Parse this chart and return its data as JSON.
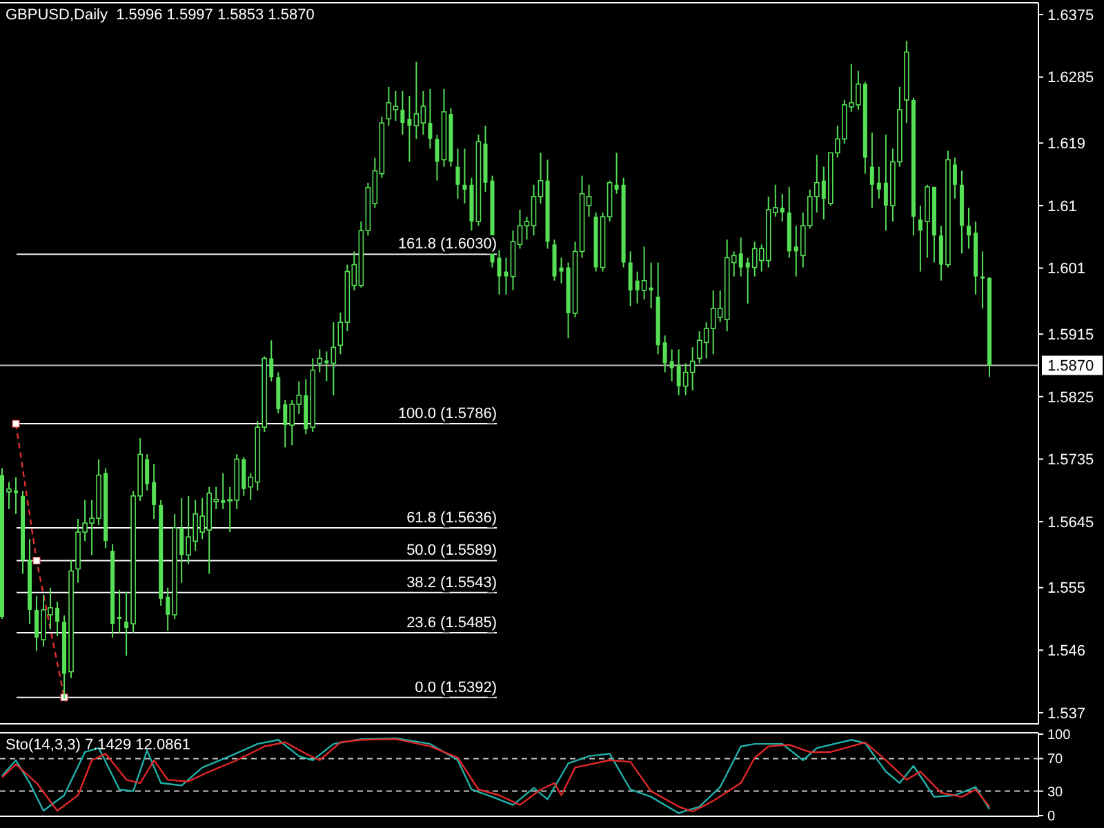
{
  "chart_data": [
    {
      "type": "candlestick",
      "title": "GBPUSD,Daily  1.5996 1.5997 1.5853 1.5870",
      "color": "#55e055",
      "categories": [
        null,
        null,
        null,
        null,
        null,
        null,
        null,
        null,
        null,
        null,
        null,
        null,
        null,
        null,
        null,
        null,
        null,
        null,
        null,
        null,
        null,
        null,
        null,
        null,
        null,
        null,
        null,
        null,
        null,
        null,
        null,
        null,
        null,
        null,
        null,
        null,
        null,
        null,
        null,
        null,
        null,
        null,
        null,
        null,
        null,
        null,
        null,
        null,
        null,
        null,
        null,
        null,
        null,
        null,
        null,
        null,
        null,
        null,
        null,
        null,
        null,
        null,
        null,
        null,
        null,
        null,
        null,
        null,
        null,
        null,
        null,
        null,
        null,
        null,
        null,
        null,
        null,
        null,
        null,
        null,
        null,
        null,
        null,
        null,
        null,
        null,
        null,
        null,
        null,
        null,
        null,
        null,
        null,
        null,
        null,
        null,
        null,
        null,
        null,
        null,
        null,
        null,
        null,
        null,
        null,
        null,
        null,
        null,
        null,
        null,
        null,
        null,
        null,
        null,
        null,
        null,
        null,
        null,
        null,
        null,
        null,
        null,
        null,
        null,
        null,
        null,
        null,
        null,
        null,
        null,
        null,
        null,
        null,
        null,
        null,
        null,
        null,
        null,
        null,
        null,
        null,
        null,
        null,
        null
      ],
      "ohlc": [
        [
          1.5712,
          1.5722,
          1.5505,
          1.5508
        ],
        [
          1.5688,
          1.5702,
          1.5663,
          1.5692
        ],
        [
          1.569,
          1.5709,
          1.5656,
          1.5686
        ],
        [
          1.5682,
          1.5689,
          1.557,
          1.559
        ],
        [
          1.559,
          1.562,
          1.5498,
          1.5518
        ],
        [
          1.5518,
          1.5538,
          1.5459,
          1.5478
        ],
        [
          1.5475,
          1.554,
          1.5465,
          1.5518
        ],
        [
          1.5511,
          1.555,
          1.549,
          1.5521
        ],
        [
          1.5521,
          1.553,
          1.548,
          1.5501
        ],
        [
          1.5501,
          1.551,
          1.539,
          1.5426
        ],
        [
          1.5429,
          1.559,
          1.542,
          1.5574
        ],
        [
          1.5577,
          1.5649,
          1.5557,
          1.563
        ],
        [
          1.563,
          1.5676,
          1.5617,
          1.5643
        ],
        [
          1.5643,
          1.5676,
          1.5597,
          1.565
        ],
        [
          1.565,
          1.5735,
          1.564,
          1.5712
        ],
        [
          1.5715,
          1.5722,
          1.5607,
          1.5617
        ],
        [
          1.5603,
          1.5613,
          1.5478,
          1.5498
        ],
        [
          1.5508,
          1.5547,
          1.5485,
          1.5505
        ],
        [
          1.5501,
          1.5544,
          1.5452,
          1.5492
        ],
        [
          1.5498,
          1.5689,
          1.5485,
          1.5682
        ],
        [
          1.5682,
          1.5765,
          1.5675,
          1.5742
        ],
        [
          1.5735,
          1.5742,
          1.569,
          1.5699
        ],
        [
          1.5702,
          1.5728,
          1.5649,
          1.5669
        ],
        [
          1.5669,
          1.5676,
          1.5524,
          1.5534
        ],
        [
          1.5537,
          1.555,
          1.5488,
          1.5511
        ],
        [
          1.5511,
          1.5656,
          1.5505,
          1.5636
        ],
        [
          1.5636,
          1.5679,
          1.5557,
          1.5597
        ],
        [
          1.5597,
          1.5682,
          1.5584,
          1.5623
        ],
        [
          1.5617,
          1.5676,
          1.5603,
          1.5656
        ],
        [
          1.563,
          1.5679,
          1.562,
          1.5653
        ],
        [
          1.5633,
          1.5695,
          1.557,
          1.5686
        ],
        [
          1.5674,
          1.5695,
          1.5663,
          1.5677
        ],
        [
          1.5676,
          1.5715,
          1.5663,
          1.5672
        ],
        [
          1.5676,
          1.5695,
          1.563,
          1.5677
        ],
        [
          1.5676,
          1.5742,
          1.5663,
          1.5735
        ],
        [
          1.5735,
          1.5738,
          1.5682,
          1.5692
        ],
        [
          1.5695,
          1.5715,
          1.5676,
          1.5709
        ],
        [
          1.5702,
          1.579,
          1.569,
          1.5781
        ],
        [
          1.5781,
          1.5883,
          1.5774,
          1.588
        ],
        [
          1.588,
          1.5906,
          1.5847,
          1.5853
        ],
        [
          1.5853,
          1.586,
          1.5801,
          1.5807
        ],
        [
          1.5814,
          1.582,
          1.5752,
          1.5784
        ],
        [
          1.5784,
          1.582,
          1.5755,
          1.5814
        ],
        [
          1.5814,
          1.5847,
          1.58,
          1.5827
        ],
        [
          1.5827,
          1.585,
          1.5771,
          1.5778
        ],
        [
          1.5781,
          1.588,
          1.5774,
          1.5863
        ],
        [
          1.5873,
          1.5893,
          1.586,
          1.588
        ],
        [
          1.5877,
          1.589,
          1.5847,
          1.5873
        ],
        [
          1.5873,
          1.5932,
          1.5827,
          1.5896
        ],
        [
          1.5899,
          1.5946,
          1.5886,
          1.5932
        ],
        [
          1.5932,
          1.6015,
          1.5919,
          1.6005
        ],
        [
          1.5985,
          1.6034,
          1.5978,
          1.6015
        ],
        [
          1.5985,
          1.6077,
          1.5982,
          1.6064
        ],
        [
          1.6064,
          1.6133,
          1.6057,
          1.6126
        ],
        [
          1.6103,
          1.6169,
          1.6097,
          1.615
        ],
        [
          1.6146,
          1.6228,
          1.614,
          1.6219
        ],
        [
          1.6225,
          1.6271,
          1.6215,
          1.6248
        ],
        [
          1.6238,
          1.6265,
          1.6222,
          1.6243
        ],
        [
          1.6238,
          1.6265,
          1.6202,
          1.6219
        ],
        [
          1.6225,
          1.6258,
          1.6163,
          1.6215
        ],
        [
          1.6215,
          1.6307,
          1.6196,
          1.6232
        ],
        [
          1.6219,
          1.6265,
          1.6202,
          1.6243
        ],
        [
          1.6219,
          1.6268,
          1.6182,
          1.6196
        ],
        [
          1.6196,
          1.6202,
          1.6136,
          1.6163
        ],
        [
          1.6166,
          1.6268,
          1.6156,
          1.6235
        ],
        [
          1.6232,
          1.624,
          1.6156,
          1.6163
        ],
        [
          1.6156,
          1.6182,
          1.611,
          1.613
        ],
        [
          1.613,
          1.6182,
          1.6103,
          1.6123
        ],
        [
          1.613,
          1.614,
          1.6064,
          1.6077
        ],
        [
          1.6077,
          1.6202,
          1.6071,
          1.6192
        ],
        [
          1.6189,
          1.6215,
          1.612,
          1.6133
        ],
        [
          1.6136,
          1.6143,
          1.6011,
          1.6018
        ],
        [
          1.6025,
          1.6036,
          1.5972,
          1.5998
        ],
        [
          1.6005,
          1.6025,
          1.5972,
          1.5998
        ],
        [
          1.5998,
          1.6064,
          1.5978,
          1.6048
        ],
        [
          1.6044,
          1.6094,
          1.6038,
          1.6071
        ],
        [
          1.6071,
          1.6084,
          1.6051,
          1.6077
        ],
        [
          1.6071,
          1.613,
          1.6057,
          1.6113
        ],
        [
          1.6113,
          1.6176,
          1.6103,
          1.6136
        ],
        [
          1.6136,
          1.6166,
          1.6038,
          1.6048
        ],
        [
          1.6044,
          1.6051,
          1.5992,
          1.5998
        ],
        [
          1.6011,
          1.6025,
          1.5988,
          1.6005
        ],
        [
          1.6011,
          1.6018,
          1.5909,
          1.5945
        ],
        [
          1.5945,
          1.6048,
          1.5939,
          1.6034
        ],
        [
          1.6034,
          1.6143,
          1.6025,
          1.6117
        ],
        [
          1.61,
          1.613,
          1.6084,
          1.6113
        ],
        [
          1.6084,
          1.609,
          1.6005,
          1.6011
        ],
        [
          1.6011,
          1.609,
          1.6005,
          1.6084
        ],
        [
          1.6084,
          1.6136,
          1.6077,
          1.6133
        ],
        [
          1.613,
          1.6176,
          1.6117,
          1.6123
        ],
        [
          1.613,
          1.614,
          1.6011,
          1.6018
        ],
        [
          1.6018,
          1.6034,
          1.5955,
          1.5978
        ],
        [
          1.5992,
          1.6005,
          1.5959,
          1.5978
        ],
        [
          1.5978,
          1.6041,
          1.5965,
          1.5992
        ],
        [
          1.5982,
          1.6018,
          1.5952,
          1.5978
        ],
        [
          1.5969,
          1.6018,
          1.5886,
          1.5899
        ],
        [
          1.5903,
          1.5913,
          1.586,
          1.5873
        ],
        [
          1.5876,
          1.5893,
          1.5847,
          1.5866
        ],
        [
          1.587,
          1.5893,
          1.5827,
          1.584
        ],
        [
          1.584,
          1.5873,
          1.5827,
          1.586
        ],
        [
          1.586,
          1.5896,
          1.5834,
          1.5876
        ],
        [
          1.588,
          1.5919,
          1.5873,
          1.5906
        ],
        [
          1.5903,
          1.5932,
          1.588,
          1.5923
        ],
        [
          1.5923,
          1.5978,
          1.5886,
          1.5952
        ],
        [
          1.5939,
          1.5978,
          1.5932,
          1.5952
        ],
        [
          1.5936,
          1.6051,
          1.5919,
          1.6025
        ],
        [
          1.6018,
          1.6034,
          1.5998,
          1.6028
        ],
        [
          1.6031,
          1.6054,
          1.5998,
          1.6011
        ],
        [
          1.6018,
          1.6025,
          1.5959,
          1.6011
        ],
        [
          1.6011,
          1.6048,
          1.5998,
          1.6038
        ],
        [
          1.6021,
          1.6044,
          1.6005,
          1.6038
        ],
        [
          1.6021,
          1.6113,
          1.6011,
          1.6094
        ],
        [
          1.609,
          1.613,
          1.6084,
          1.6097
        ],
        [
          1.6097,
          1.6117,
          1.6077,
          1.609
        ],
        [
          1.609,
          1.6127,
          1.6025,
          1.6034
        ],
        [
          1.6041,
          1.6071,
          1.5998,
          1.6034
        ],
        [
          1.6028,
          1.609,
          1.6011,
          1.6071
        ],
        [
          1.6071,
          1.6123,
          1.6067,
          1.6113
        ],
        [
          1.6113,
          1.6173,
          1.609,
          1.6133
        ],
        [
          1.6136,
          1.6156,
          1.608,
          1.611
        ],
        [
          1.6103,
          1.6176,
          1.61,
          1.6176
        ],
        [
          1.6176,
          1.6215,
          1.6169,
          1.6196
        ],
        [
          1.6196,
          1.6252,
          1.6189,
          1.6245
        ],
        [
          1.6242,
          1.6304,
          1.6235,
          1.6248
        ],
        [
          1.6245,
          1.6294,
          1.6238,
          1.6275
        ],
        [
          1.6275,
          1.6278,
          1.6146,
          1.6169
        ],
        [
          1.6156,
          1.6205,
          1.6097,
          1.613
        ],
        [
          1.6133,
          1.6156,
          1.611,
          1.6123
        ],
        [
          1.6133,
          1.6202,
          1.6064,
          1.61
        ],
        [
          1.61,
          1.6182,
          1.6077,
          1.6163
        ],
        [
          1.6163,
          1.6271,
          1.6156,
          1.6238
        ],
        [
          1.6252,
          1.6337,
          1.6219,
          1.6321
        ],
        [
          1.6252,
          1.6255,
          1.6057,
          1.6084
        ],
        [
          1.608,
          1.61,
          1.6005,
          1.6064
        ],
        [
          1.6077,
          1.613,
          1.6025,
          1.6127
        ],
        [
          1.6127,
          1.6127,
          1.6018,
          1.6057
        ],
        [
          1.6057,
          1.6071,
          1.5992,
          1.6015
        ],
        [
          1.6015,
          1.6179,
          1.6011,
          1.6166
        ],
        [
          1.6159,
          1.6169,
          1.611,
          1.613
        ],
        [
          1.613,
          1.615,
          1.6031,
          1.6071
        ],
        [
          1.6071,
          1.6097,
          1.6038,
          1.6057
        ],
        [
          1.6061,
          1.6077,
          1.5972,
          1.5998
        ],
        [
          1.5998,
          1.6034,
          1.5952,
          1.5995
        ],
        [
          1.5996,
          1.5997,
          1.5853,
          1.587
        ]
      ],
      "ylim": [
        1.5355,
        1.639
      ],
      "yticks": [
        1.6375,
        1.6285,
        1.619,
        1.61,
        1.601,
        1.5915,
        1.5825,
        1.5735,
        1.5645,
        1.555,
        1.546,
        1.537
      ],
      "ref_lines": [
        {
          "axis": "y",
          "value": 1.603,
          "label": "161.8 (1.6030)",
          "color": "#ffffff"
        },
        {
          "axis": "y",
          "value": 1.5786,
          "label": "100.0 (1.5786)",
          "color": "#ffffff"
        },
        {
          "axis": "y",
          "value": 1.5636,
          "label": "61.8 (1.5636)",
          "color": "#ffffff"
        },
        {
          "axis": "y",
          "value": 1.5589,
          "label": "50.0 (1.5589)",
          "color": "#ffffff"
        },
        {
          "axis": "y",
          "value": 1.5543,
          "label": "38.2 (1.5543)",
          "color": "#ffffff"
        },
        {
          "axis": "y",
          "value": 1.5485,
          "label": "23.6 (1.5485)",
          "color": "#ffffff"
        },
        {
          "axis": "y",
          "value": 1.5392,
          "label": "0.0 (1.5392)",
          "color": "#ffffff"
        },
        {
          "axis": "y",
          "value": 1.587,
          "label": "1.5870",
          "color": "#c0c0c0"
        }
      ],
      "series": [
        {
          "type": "line",
          "color": "#e03030",
          "line_style": "dashed",
          "marker": "square",
          "values": [
            null,
            null,
            1.5786,
            null,
            null,
            1.5589,
            null,
            null,
            null,
            1.5392,
            null,
            null,
            null,
            null,
            null,
            null,
            null,
            null,
            null,
            null,
            null,
            null,
            null,
            null,
            null,
            null,
            null,
            null,
            null,
            null,
            null,
            null,
            null,
            null,
            null,
            null,
            null,
            null,
            null,
            null,
            null,
            null,
            null,
            null,
            null,
            null,
            null,
            null,
            null,
            null,
            null,
            null,
            null,
            null,
            null,
            null,
            null,
            null,
            null,
            null,
            null,
            null,
            null,
            null,
            null,
            null,
            null,
            null,
            null,
            null,
            null,
            null,
            null,
            null,
            null,
            null,
            null,
            null,
            null,
            null,
            null,
            null,
            null,
            null,
            null,
            null,
            null,
            null,
            null,
            null,
            null,
            null,
            null,
            null,
            null,
            null,
            null,
            null,
            null,
            null,
            null,
            null,
            null,
            null,
            null,
            null,
            null,
            null,
            null,
            null,
            null,
            null,
            null,
            null,
            null,
            null,
            null,
            null,
            null,
            null,
            null,
            null,
            null,
            null,
            null,
            null,
            null,
            null,
            null,
            null,
            null,
            null,
            null,
            null,
            null,
            null,
            null,
            null,
            null,
            null,
            null,
            null,
            null,
            null
          ]
        }
      ]
    },
    {
      "type": "line",
      "title": "Sto(14,3,3) 7.1429 12.0861",
      "categories": [
        null,
        null,
        null,
        null,
        null,
        null,
        null,
        null,
        null,
        null,
        null,
        null,
        null,
        null,
        null,
        null,
        null,
        null,
        null,
        null,
        null,
        null,
        null,
        null,
        null,
        null,
        null,
        null,
        null,
        null,
        null,
        null,
        null,
        null,
        null,
        null,
        null,
        null,
        null,
        null,
        null,
        null,
        null,
        null,
        null,
        null,
        null,
        null,
        null,
        null,
        null,
        null,
        null,
        null,
        null,
        null,
        null,
        null,
        null,
        null,
        null,
        null,
        null,
        null,
        null,
        null,
        null,
        null,
        null,
        null,
        null,
        null,
        null,
        null,
        null,
        null,
        null,
        null,
        null,
        null,
        null,
        null,
        null,
        null,
        null,
        null,
        null,
        null,
        null,
        null,
        null,
        null,
        null,
        null,
        null,
        null,
        null,
        null,
        null,
        null,
        null,
        null,
        null,
        null,
        null,
        null,
        null,
        null,
        null,
        null,
        null,
        null,
        null,
        null,
        null,
        null,
        null,
        null,
        null,
        null,
        null,
        null,
        null,
        null,
        null,
        null,
        null,
        null,
        null,
        null,
        null,
        null,
        null,
        null,
        null,
        null,
        null,
        null,
        null,
        null,
        null,
        null,
        null,
        null
      ],
      "ylim": [
        0,
        100
      ],
      "yticks": [
        0,
        30,
        70,
        100
      ],
      "ref_lines": [
        {
          "axis": "y",
          "value": 70,
          "color": "#c8c8c8",
          "line_style": "dashed"
        },
        {
          "axis": "y",
          "value": 30,
          "color": "#c8c8c8",
          "line_style": "dashed"
        }
      ],
      "series": [
        {
          "color": "#20b2aa",
          "values": [
            49,
            null,
            68,
            null,
            40,
            null,
            6,
            null,
            null,
            25,
            null,
            null,
            78,
            null,
            83,
            null,
            null,
            32,
            null,
            30,
            null,
            80,
            null,
            40,
            null,
            null,
            37,
            null,
            null,
            59,
            null,
            null,
            null,
            73,
            null,
            null,
            null,
            88,
            null,
            null,
            93,
            null,
            null,
            73,
            null,
            68,
            null,
            null,
            88,
            null,
            null,
            null,
            94,
            null,
            null,
            null,
            null,
            95,
            null,
            null,
            null,
            null,
            88,
            null,
            null,
            null,
            68,
            null,
            32,
            null,
            null,
            23,
            null,
            null,
            13,
            null,
            null,
            34,
            null,
            20,
            null,
            null,
            64,
            null,
            null,
            73,
            null,
            null,
            76,
            null,
            null,
            32,
            null,
            null,
            23,
            null,
            null,
            null,
            3,
            null,
            null,
            11,
            null,
            null,
            35,
            null,
            null,
            85,
            null,
            88,
            null,
            null,
            null,
            88,
            null,
            null,
            68,
            null,
            83,
            null,
            null,
            null,
            null,
            93,
            null,
            89,
            null,
            null,
            54,
            null,
            40,
            null,
            61,
            null,
            null,
            23,
            null,
            null,
            25,
            null,
            null,
            35,
            null,
            8
          ]
        },
        {
          "color": "#e02828",
          "values": [
            47,
            null,
            63,
            null,
            null,
            40,
            null,
            null,
            6,
            null,
            null,
            25,
            null,
            68,
            null,
            76,
            null,
            null,
            44,
            null,
            40,
            null,
            68,
            null,
            44,
            null,
            null,
            42,
            null,
            null,
            54,
            null,
            null,
            null,
            68,
            null,
            null,
            null,
            85,
            null,
            null,
            90,
            null,
            null,
            76,
            null,
            68,
            null,
            null,
            90,
            null,
            null,
            93,
            null,
            null,
            null,
            null,
            94,
            null,
            null,
            null,
            null,
            85,
            null,
            null,
            null,
            71,
            null,
            null,
            32,
            null,
            null,
            25,
            null,
            null,
            13,
            null,
            null,
            32,
            null,
            40,
            25,
            null,
            59,
            null,
            null,
            null,
            null,
            68,
            null,
            null,
            66,
            null,
            null,
            30,
            null,
            null,
            null,
            11,
            null,
            5,
            null,
            null,
            18,
            null,
            null,
            null,
            40,
            null,
            71,
            null,
            85,
            null,
            null,
            87,
            null,
            null,
            78,
            null,
            null,
            78,
            null,
            null,
            85,
            null,
            90,
            null,
            null,
            68,
            null,
            null,
            44,
            null,
            54,
            null,
            null,
            28,
            null,
            null,
            23,
            null,
            32,
            null,
            11
          ]
        }
      ]
    }
  ]
}
